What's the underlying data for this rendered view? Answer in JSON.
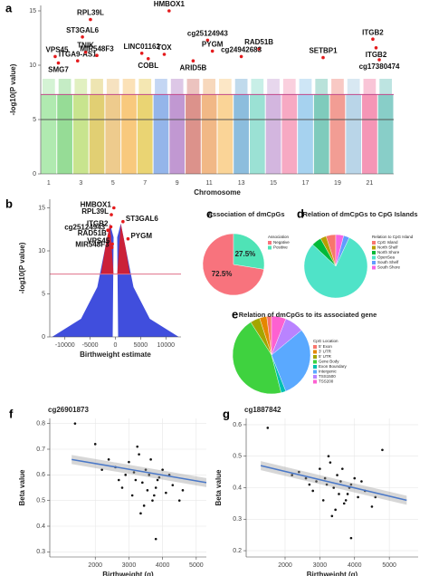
{
  "chart_data": [
    {
      "type": "manhattan",
      "panel_label": "a",
      "ylabel": "-log10(P value)",
      "xlabel": "Chromosome",
      "categories": [
        "1",
        null,
        "3",
        null,
        "5",
        null,
        "7",
        null,
        "9",
        null,
        "11",
        null,
        "13",
        null,
        "15",
        null,
        "17",
        null,
        "19",
        null,
        "21",
        null
      ],
      "chromosome_colors": [
        "#6fd86f",
        "#3fbf3f",
        "#9acd32",
        "#c8a800",
        "#e0a030",
        "#f39c12",
        "#d9b000",
        "#3c78d8",
        "#8e44ad",
        "#c0392b",
        "#e67e22",
        "#f5b041",
        "#2e86c1",
        "#48c9b0",
        "#af7ac5",
        "#f06292",
        "#5dade2",
        "#16a085",
        "#e74c3c",
        "#7fb3d5",
        "#ec407a",
        "#26a69a"
      ],
      "xlim": [
        0.5,
        22.5
      ],
      "ylim": [
        0,
        15.5
      ],
      "yticks": [
        0,
        5,
        10,
        15
      ],
      "grid": false,
      "thresholds": [
        {
          "value": 7.3,
          "color": "#c2478a"
        },
        {
          "value": 5,
          "color": "#555555"
        }
      ],
      "point_color": "#e41a1c",
      "points": {
        "labels": [
          "RPL39L",
          "HMBOX1",
          "ST3GAL6",
          "cg25124943",
          "ITGB2",
          "ITGB2",
          "VPS45",
          "SMG7",
          "ITGA9-AS1",
          "TNIK",
          "MIR548F3",
          "LINC01162",
          "TOX",
          "COBL",
          "PYGM",
          "RAD51B",
          "ARID5B",
          "cg24942683",
          "SETBP1",
          "cg17380474"
        ],
        "x": [
          3.6,
          8.5,
          3.1,
          10.9,
          21.2,
          21.4,
          1.4,
          1.6,
          2.8,
          3.3,
          4.0,
          6.8,
          8.2,
          7.2,
          11.2,
          14.1,
          10.0,
          13.0,
          18.1,
          21.6
        ],
        "values": [
          14.2,
          15.0,
          12.6,
          12.3,
          12.4,
          11.6,
          10.8,
          10.2,
          10.4,
          11.2,
          10.9,
          11.1,
          11.0,
          10.6,
          11.3,
          11.5,
          10.4,
          10.8,
          10.7,
          10.5
        ]
      }
    },
    {
      "type": "volcano",
      "panel_label": "b",
      "ylabel": "-log10(P value)",
      "xlabel": "Birthweight estimate",
      "xlim": [
        -13000,
        13000
      ],
      "xticks": [
        -10000,
        -5000,
        0,
        5000,
        10000
      ],
      "ylim": [
        0,
        16
      ],
      "yticks": [
        0,
        5,
        10,
        15
      ],
      "grid": false,
      "threshold": {
        "value": 7.3,
        "color": "#e0708a"
      },
      "cloud_color": "#2b3bd9",
      "point_color": "#e41a1c",
      "points": {
        "labels": [
          "HMBOX1",
          "RPL39L",
          "ST3GAL6",
          "ITGB2",
          "cg25124943",
          "RAD51B",
          "PYGM",
          "VPS45",
          "MIR548F3"
        ],
        "x": [
          -300,
          -800,
          1500,
          -900,
          -1500,
          -1200,
          2500,
          -600,
          -700
        ],
        "values": [
          15.0,
          14.2,
          13.4,
          12.8,
          12.4,
          11.7,
          11.4,
          10.8,
          10.4
        ]
      }
    },
    {
      "type": "pie",
      "panel_label": "c",
      "title": "Association of dmCpGs",
      "legend_title": "Association",
      "categories": [
        "Negative",
        "Positive"
      ],
      "values": [
        72.5,
        27.5
      ],
      "value_labels": [
        "72.5%",
        "27.5%"
      ],
      "colors": [
        "#f8737d",
        "#4fe3b6"
      ]
    },
    {
      "type": "pie",
      "panel_label": "d",
      "title": "Relation of dmCpGs to CpG Islands",
      "legend_title": "Relation to CpG Island",
      "categories": [
        "CpG Island",
        "North Shelf",
        "North Shore",
        "OpenSea",
        "South Shelf",
        "South Shore"
      ],
      "values": [
        5,
        3,
        5,
        80,
        3,
        4
      ],
      "colors": [
        "#f8766d",
        "#b79f00",
        "#00ba38",
        "#4fe3c8",
        "#619cff",
        "#f564e3"
      ]
    },
    {
      "type": "pie",
      "panel_label": "e",
      "title": "Relation of dmCpGs to its associated gene",
      "legend_title": "CpG Location",
      "categories": [
        "5' Exon",
        "3' UTR",
        "5' UTR",
        "Gene Body",
        "Exon Boundary",
        "Intergenic",
        "TSS1500",
        "TSS200"
      ],
      "values": [
        2,
        3,
        4,
        45,
        2,
        30,
        8,
        6
      ],
      "colors": [
        "#f8766d",
        "#e58700",
        "#a3a500",
        "#3fd23f",
        "#00c0af",
        "#5aa9ff",
        "#b983ff",
        "#fd61d1"
      ]
    },
    {
      "type": "scatter",
      "panel_label": "f",
      "title": "cg26901873",
      "ylabel": "Beta value",
      "xlabel": "Birthweight (g)",
      "xlim": [
        650,
        5300
      ],
      "xticks": [
        2000,
        3000,
        4000,
        5000
      ],
      "ylim": [
        0.28,
        0.82
      ],
      "yticks": [
        0.3,
        0.4,
        0.5,
        0.6,
        0.7,
        0.8
      ],
      "grid": true,
      "color": "#111111",
      "fit_color": "#4a78c8",
      "x": [
        3200,
        3500,
        2900,
        3800,
        4100,
        3400,
        3000,
        2600,
        3700,
        4300,
        3300,
        3600,
        2800,
        3900,
        4500,
        3100,
        3550,
        2400,
        4000,
        3450,
        3250,
        3850,
        4200,
        2700,
        3650,
        3350,
        4600,
        2200,
        3750,
        3150,
        1400,
        3800,
        2000
      ],
      "values": [
        0.58,
        0.62,
        0.6,
        0.55,
        0.53,
        0.57,
        0.65,
        0.63,
        0.5,
        0.56,
        0.68,
        0.6,
        0.55,
        0.59,
        0.5,
        0.52,
        0.54,
        0.66,
        0.62,
        0.48,
        0.71,
        0.58,
        0.6,
        0.58,
        0.66,
        0.45,
        0.54,
        0.62,
        0.52,
        0.61,
        0.8,
        0.35,
        0.72
      ],
      "fit": {
        "x": [
          1300,
          5300
        ],
        "values": [
          0.66,
          0.57
        ]
      }
    },
    {
      "type": "scatter",
      "panel_label": "g",
      "title": "cg1887842",
      "ylabel": "Beta value",
      "xlabel": "Birthweight (g)",
      "xlim": [
        880,
        5830
      ],
      "xticks": [
        2000,
        3000,
        4000,
        5000
      ],
      "ylim": [
        0.18,
        0.62
      ],
      "yticks": [
        0.2,
        0.3,
        0.4,
        0.5,
        0.6
      ],
      "grid": true,
      "color": "#111111",
      "fit_color": "#4a78c8",
      "x": [
        3200,
        3500,
        2900,
        3800,
        4100,
        3400,
        3000,
        2600,
        3700,
        4300,
        3300,
        3600,
        2800,
        3900,
        4500,
        3100,
        3550,
        2400,
        4000,
        3450,
        3250,
        3850,
        4200,
        2700,
        3650,
        3350,
        4600,
        2200,
        3750,
        3150,
        1500,
        3900,
        4800
      ],
      "values": [
        0.41,
        0.44,
        0.42,
        0.38,
        0.37,
        0.4,
        0.46,
        0.43,
        0.35,
        0.39,
        0.48,
        0.42,
        0.39,
        0.41,
        0.34,
        0.36,
        0.38,
        0.45,
        0.43,
        0.33,
        0.5,
        0.4,
        0.42,
        0.41,
        0.46,
        0.31,
        0.37,
        0.44,
        0.36,
        0.43,
        0.59,
        0.24,
        0.52
      ],
      "fit": {
        "x": [
          1300,
          5500
        ],
        "values": [
          0.47,
          0.36
        ]
      }
    }
  ]
}
